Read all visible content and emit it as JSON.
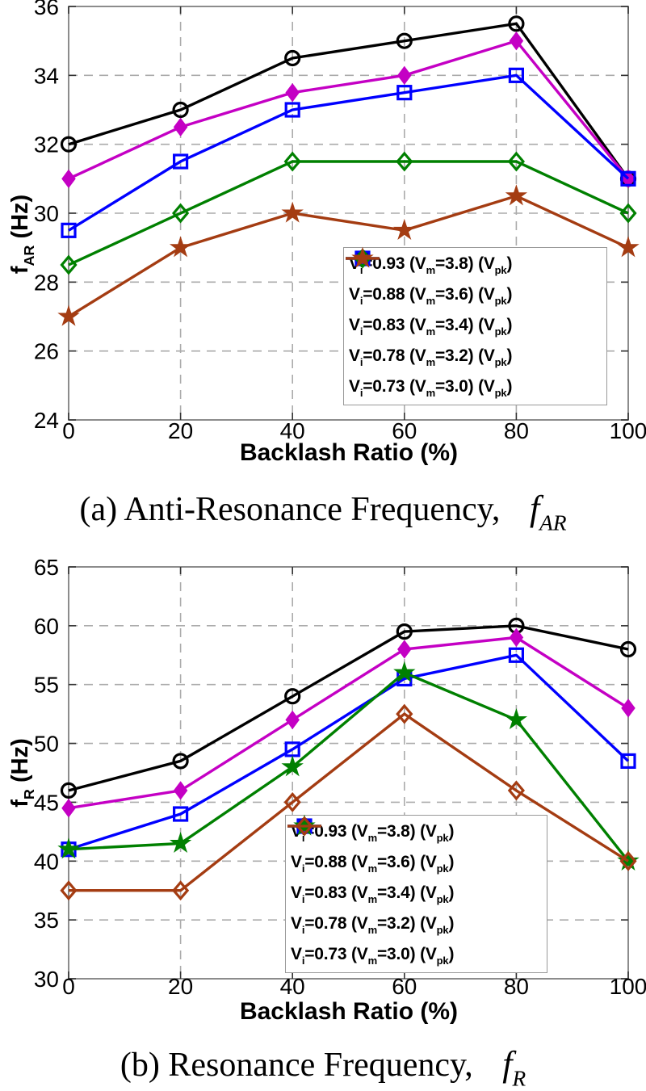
{
  "page": {
    "background": "#FFFFFF"
  },
  "chart_data": [
    {
      "type": "line",
      "title": "",
      "xlabel": "Backlash Ratio (%)",
      "ylabel": "f_{AR} (Hz)",
      "x": [
        0,
        20,
        40,
        60,
        80,
        100
      ],
      "xticks": [
        0,
        20,
        40,
        60,
        80,
        100
      ],
      "yticks": [
        24,
        26,
        28,
        30,
        32,
        34,
        36
      ],
      "xlim": [
        0,
        100
      ],
      "ylim": [
        24,
        36
      ],
      "grid": true,
      "legend_position": "inside-lower-right",
      "series": [
        {
          "name": "V_{i}=0.93 (V_{m}=3.8) (V_{pk})",
          "color": "#000000",
          "marker": "circle-open",
          "values": [
            32,
            33,
            34.5,
            35,
            35.5,
            31
          ]
        },
        {
          "name": "V_{i}=0.88 (V_{m}=3.6) (V_{pk})",
          "color": "#C400C4",
          "marker": "diamond-filled",
          "values": [
            31,
            32.5,
            33.5,
            34,
            35,
            31
          ]
        },
        {
          "name": "V_{i}=0.83 (V_{m}=3.4) (V_{pk})",
          "color": "#0000FF",
          "marker": "square-open",
          "values": [
            29.5,
            31.5,
            33,
            33.5,
            34,
            31
          ]
        },
        {
          "name": "V_{i}=0.78 (V_{m}=3.2) (V_{pk})",
          "color": "#008000",
          "marker": "diamond-open",
          "values": [
            28.5,
            30,
            31.5,
            31.5,
            31.5,
            30
          ]
        },
        {
          "name": "V_{i}=0.73 (V_{m}=3.0) (V_{pk})",
          "color": "#A43C12",
          "marker": "star-filled",
          "values": [
            27,
            29,
            30,
            29.5,
            30.5,
            29
          ]
        }
      ],
      "caption": {
        "index": "(a)",
        "text": "Anti-Resonance Frequency,",
        "symbol": "f_{AR}"
      }
    },
    {
      "type": "line",
      "title": "",
      "xlabel": "Backlash Ratio (%)",
      "ylabel": "f_{R} (Hz)",
      "x": [
        0,
        20,
        40,
        60,
        80,
        100
      ],
      "xticks": [
        0,
        20,
        40,
        60,
        80,
        100
      ],
      "yticks": [
        30,
        35,
        40,
        45,
        50,
        55,
        60,
        65
      ],
      "xlim": [
        0,
        100
      ],
      "ylim": [
        30,
        65
      ],
      "grid": true,
      "legend_position": "inside-lower-right",
      "series": [
        {
          "name": "V_{i}=0.93 (V_{m}=3.8) (V_{pk})",
          "color": "#000000",
          "marker": "circle-open",
          "values": [
            46,
            48.5,
            54,
            59.5,
            60,
            58
          ]
        },
        {
          "name": "V_{i}=0.88 (V_{m}=3.6) (V_{pk})",
          "color": "#C400C4",
          "marker": "diamond-filled",
          "values": [
            44.5,
            46,
            52,
            58,
            59,
            53
          ]
        },
        {
          "name": "V_{i}=0.83 (V_{m}=3.4) (V_{pk})",
          "color": "#0000FF",
          "marker": "square-open",
          "values": [
            41,
            44,
            49.5,
            55.5,
            57.5,
            48.5
          ]
        },
        {
          "name": "V_{i}=0.78 (V_{m}=3.2) (V_{pk})",
          "color": "#008000",
          "marker": "star-filled",
          "values": [
            41,
            41.5,
            48,
            56,
            52,
            40
          ]
        },
        {
          "name": "V_{i}=0.73 (V_{m}=3.0) (V_{pk})",
          "color": "#A43C12",
          "marker": "diamond-open",
          "values": [
            37.5,
            37.5,
            45,
            52.5,
            46,
            40
          ]
        }
      ],
      "caption": {
        "index": "(b)",
        "text": "Resonance Frequency,",
        "symbol": "f_{R}"
      }
    }
  ],
  "style": {
    "grid_color": "#ABABAB",
    "axis_box_color": "#808080",
    "tick_color": "#333333"
  }
}
